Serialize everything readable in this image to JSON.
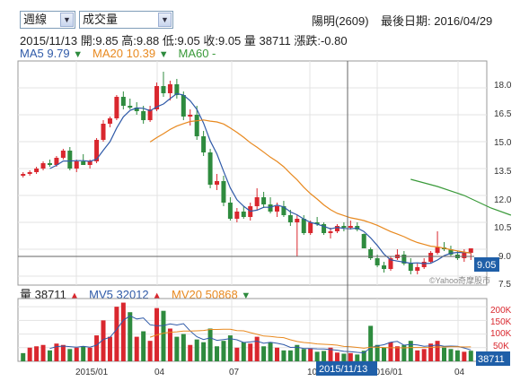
{
  "controls": {
    "period": "週線",
    "indicator": "成交量"
  },
  "stock": {
    "name_code": "陽明(2609)",
    "last_date_label": "最後日期: 2016/04/29"
  },
  "quote": {
    "date": "2015/11/13",
    "open": "開:9.85",
    "high": "高:9.88",
    "low": "低:9.05",
    "close": "收:9.05",
    "volume": "量 38711",
    "change": "漲跌:-0.80"
  },
  "ma_legend": {
    "ma5": "MA5 9.79",
    "ma20": "MA20 10.39",
    "ma60": "MA60 -",
    "arrow": "▼"
  },
  "vol_legend": {
    "vol": "量 38711",
    "mv5": "MV5 32012",
    "mv20": "MV20 50868",
    "up_arrow": "▲",
    "down_arrow": "▼"
  },
  "price_axis": [
    "18.0",
    "16.5",
    "15.0",
    "13.5",
    "12.0",
    "10.5",
    "9.0",
    "7.5"
  ],
  "vol_axis": [
    "200K",
    "150K",
    "100K",
    "50K"
  ],
  "x_axis": [
    "2015/01",
    "04",
    "07",
    "10",
    "2016/01",
    "04"
  ],
  "crosshair": {
    "date_label": "2015/11/13",
    "price_label": "9.05",
    "vol_label": "38711"
  },
  "watermark": "©Yahoo奇摩股市",
  "colors": {
    "up": "#d9272e",
    "down": "#2e8b3e",
    "ma5": "#2f5aa8",
    "ma20": "#e8891f",
    "ma60": "#3a9a3a",
    "tag": "#1f5fa8"
  },
  "chart_data": {
    "type": "candlestick",
    "price_range": [
      7.0,
      19.5
    ],
    "volume_range": [
      0,
      230000
    ],
    "candles": [
      [
        13.1,
        13.3,
        13.0,
        13.2
      ],
      [
        13.2,
        13.4,
        13.1,
        13.3
      ],
      [
        13.3,
        13.6,
        13.2,
        13.5
      ],
      [
        13.5,
        13.9,
        13.4,
        13.8
      ],
      [
        13.8,
        14.0,
        13.6,
        13.7
      ],
      [
        13.7,
        14.2,
        13.6,
        14.1
      ],
      [
        14.1,
        14.6,
        14.0,
        14.5
      ],
      [
        14.5,
        14.7,
        13.4,
        13.5
      ],
      [
        13.5,
        14.0,
        13.3,
        13.9
      ],
      [
        13.9,
        14.3,
        13.7,
        13.7
      ],
      [
        13.7,
        14.0,
        13.5,
        13.9
      ],
      [
        13.9,
        15.2,
        13.8,
        15.1
      ],
      [
        15.1,
        16.2,
        15.0,
        16.0
      ],
      [
        16.0,
        16.4,
        15.8,
        16.3
      ],
      [
        16.3,
        17.6,
        16.2,
        17.5
      ],
      [
        17.5,
        17.8,
        16.8,
        17.0
      ],
      [
        17.0,
        17.4,
        16.8,
        16.9
      ],
      [
        16.9,
        17.2,
        16.5,
        16.7
      ],
      [
        16.7,
        17.0,
        16.0,
        16.2
      ],
      [
        16.2,
        17.0,
        16.1,
        16.8
      ],
      [
        16.8,
        18.3,
        16.7,
        18.1
      ],
      [
        18.1,
        18.9,
        17.5,
        17.7
      ],
      [
        17.7,
        18.4,
        17.3,
        18.2
      ],
      [
        18.2,
        18.5,
        17.4,
        17.6
      ],
      [
        17.6,
        17.8,
        16.2,
        16.4
      ],
      [
        16.4,
        16.8,
        15.9,
        16.5
      ],
      [
        16.5,
        17.0,
        15.1,
        15.3
      ],
      [
        15.3,
        15.6,
        14.2,
        14.4
      ],
      [
        14.4,
        14.6,
        12.4,
        12.6
      ],
      [
        12.6,
        13.2,
        12.3,
        12.8
      ],
      [
        12.8,
        13.1,
        11.4,
        11.6
      ],
      [
        11.6,
        11.9,
        10.6,
        10.7
      ],
      [
        10.7,
        11.3,
        10.5,
        11.1
      ],
      [
        11.1,
        11.4,
        10.7,
        10.8
      ],
      [
        10.8,
        11.6,
        10.6,
        11.4
      ],
      [
        11.4,
        12.4,
        11.2,
        11.9
      ],
      [
        11.9,
        12.2,
        11.3,
        11.5
      ],
      [
        11.5,
        11.9,
        11.0,
        11.1
      ],
      [
        11.1,
        11.6,
        10.8,
        11.4
      ],
      [
        11.4,
        11.7,
        10.8,
        10.9
      ],
      [
        10.9,
        11.2,
        10.3,
        10.5
      ],
      [
        10.5,
        10.9,
        8.6,
        10.7
      ],
      [
        10.7,
        10.9,
        9.8,
        9.9
      ],
      [
        9.9,
        10.6,
        9.8,
        10.5
      ],
      [
        10.5,
        10.8,
        10.3,
        10.4
      ],
      [
        10.4,
        10.5,
        9.8,
        9.9
      ],
      [
        9.9,
        10.2,
        9.6,
        10.0
      ],
      [
        10.0,
        10.4,
        9.9,
        10.3
      ],
      [
        10.3,
        10.5,
        10.0,
        10.2
      ],
      [
        10.2,
        10.6,
        10.1,
        10.3
      ],
      [
        10.3,
        10.5,
        10.0,
        10.1
      ],
      [
        9.85,
        9.88,
        9.05,
        9.05
      ],
      [
        9.0,
        9.1,
        8.4,
        8.5
      ],
      [
        8.5,
        8.7,
        8.0,
        8.1
      ],
      [
        8.1,
        8.3,
        7.7,
        7.9
      ],
      [
        7.9,
        8.6,
        7.8,
        8.5
      ],
      [
        8.5,
        9.0,
        8.4,
        8.7
      ],
      [
        8.7,
        8.9,
        8.1,
        8.2
      ],
      [
        8.2,
        8.5,
        7.6,
        7.8
      ],
      [
        7.8,
        8.2,
        7.6,
        8.0
      ],
      [
        8.0,
        8.5,
        7.9,
        8.3
      ],
      [
        8.3,
        8.9,
        8.2,
        8.8
      ],
      [
        8.8,
        10.0,
        8.7,
        9.1
      ],
      [
        9.1,
        9.4,
        8.9,
        9.0
      ],
      [
        9.0,
        9.2,
        8.6,
        8.7
      ],
      [
        8.7,
        8.9,
        8.4,
        8.5
      ],
      [
        8.5,
        9.0,
        8.3,
        8.8
      ],
      [
        8.8,
        9.0,
        8.4,
        9.05
      ]
    ],
    "volumes": [
      [
        30,
        0
      ],
      [
        50,
        1
      ],
      [
        55,
        1
      ],
      [
        60,
        1
      ],
      [
        40,
        0
      ],
      [
        65,
        1
      ],
      [
        60,
        1
      ],
      [
        45,
        0
      ],
      [
        50,
        1
      ],
      [
        55,
        0
      ],
      [
        50,
        1
      ],
      [
        95,
        1
      ],
      [
        150,
        1
      ],
      [
        90,
        1
      ],
      [
        200,
        1
      ],
      [
        215,
        1
      ],
      [
        180,
        0
      ],
      [
        90,
        1
      ],
      [
        110,
        0
      ],
      [
        75,
        1
      ],
      [
        195,
        1
      ],
      [
        185,
        0
      ],
      [
        120,
        1
      ],
      [
        90,
        0
      ],
      [
        100,
        0
      ],
      [
        60,
        1
      ],
      [
        80,
        0
      ],
      [
        70,
        0
      ],
      [
        120,
        0
      ],
      [
        55,
        0
      ],
      [
        75,
        0
      ],
      [
        95,
        0
      ],
      [
        50,
        1
      ],
      [
        70,
        0
      ],
      [
        65,
        1
      ],
      [
        90,
        1
      ],
      [
        55,
        0
      ],
      [
        70,
        0
      ],
      [
        50,
        1
      ],
      [
        40,
        0
      ],
      [
        40,
        0
      ],
      [
        60,
        0
      ],
      [
        45,
        0
      ],
      [
        48,
        1
      ],
      [
        35,
        0
      ],
      [
        38,
        0
      ],
      [
        50,
        1
      ],
      [
        32,
        1
      ],
      [
        28,
        0
      ],
      [
        30,
        1
      ],
      [
        25,
        0
      ],
      [
        38.7,
        0
      ],
      [
        130,
        0
      ],
      [
        60,
        0
      ],
      [
        50,
        0
      ],
      [
        70,
        1
      ],
      [
        55,
        1
      ],
      [
        60,
        0
      ],
      [
        75,
        0
      ],
      [
        40,
        1
      ],
      [
        45,
        1
      ],
      [
        65,
        1
      ],
      [
        75,
        1
      ],
      [
        50,
        0
      ],
      [
        45,
        0
      ],
      [
        40,
        0
      ],
      [
        35,
        1
      ],
      [
        38.7,
        0
      ]
    ],
    "ma60_points": [
      [
        58,
        12.9
      ],
      [
        62,
        12.5
      ],
      [
        66,
        12.0
      ],
      [
        70,
        11.3
      ],
      [
        73,
        10.9
      ]
    ]
  }
}
